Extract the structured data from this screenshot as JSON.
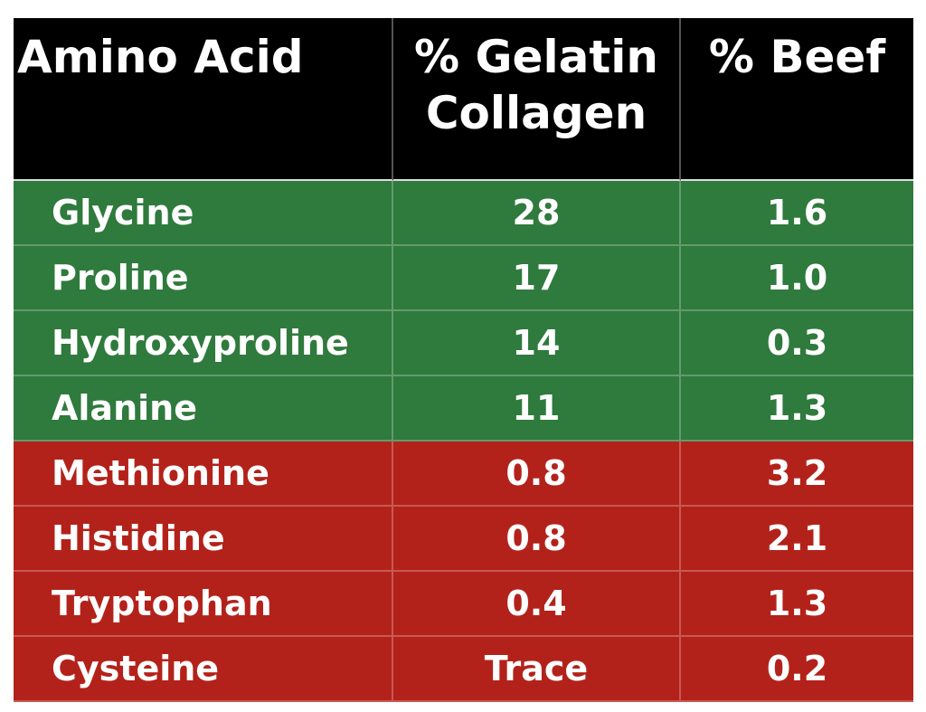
{
  "table": {
    "header": [
      "Amino Acid",
      "% Gelatin Collagen",
      "% Beef"
    ],
    "rows": [
      {
        "color": "#2f7a3d",
        "cells": [
          "Glycine",
          "28",
          "1.6"
        ]
      },
      {
        "color": "#2f7a3d",
        "cells": [
          "Proline",
          "17",
          "1.0"
        ]
      },
      {
        "color": "#2f7a3d",
        "cells": [
          "Hydroxyproline",
          "14",
          "0.3"
        ]
      },
      {
        "color": "#2f7a3d",
        "cells": [
          "Alanine",
          "11",
          "1.3"
        ]
      },
      {
        "color": "#b3221a",
        "cells": [
          "Methionine",
          "0.8",
          "3.2"
        ]
      },
      {
        "color": "#b3221a",
        "cells": [
          "Histidine",
          "0.8",
          "2.1"
        ]
      },
      {
        "color": "#b3221a",
        "cells": [
          "Tryptophan",
          "0.4",
          "1.3"
        ]
      },
      {
        "color": "#b3221a",
        "cells": [
          "Cysteine",
          "Trace",
          "0.2"
        ]
      }
    ]
  }
}
